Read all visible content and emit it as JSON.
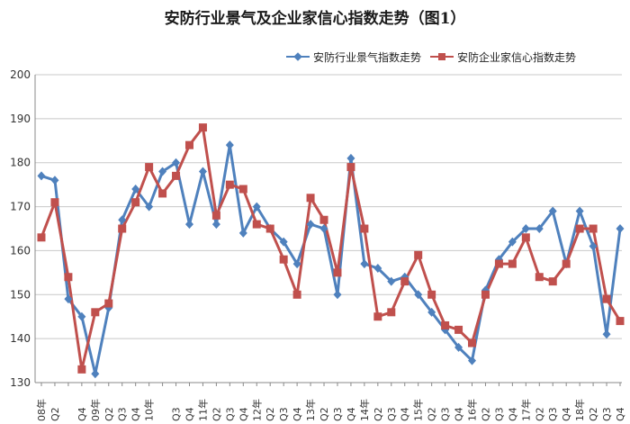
{
  "chart_data": {
    "type": "line",
    "title": "安防行业景气及企业家信心指数走势（图1）",
    "xlabel": "",
    "ylabel": "",
    "ylim": [
      130,
      200
    ],
    "yticks": [
      130,
      140,
      150,
      160,
      170,
      180,
      190,
      200
    ],
    "grid": true,
    "legend_position": "top-right",
    "categories": [
      "08年",
      "Q2",
      "Q3",
      "Q4",
      "09年",
      "Q2",
      "Q3",
      "Q4",
      "10年",
      "Q2",
      "Q3",
      "Q4",
      "11年",
      "Q2",
      "Q3",
      "Q4",
      "12年",
      "Q2",
      "Q3",
      "Q4",
      "13年",
      "Q2",
      "Q3",
      "Q4",
      "14年",
      "Q2",
      "Q3",
      "Q4",
      "15年",
      "Q2",
      "Q3",
      "Q4",
      "16年",
      "Q2",
      "Q3",
      "Q4",
      "17年",
      "Q2",
      "Q3",
      "Q4",
      "18年",
      "Q2",
      "Q3",
      "Q4"
    ],
    "tick_labels": [
      "08年",
      "Q2",
      "Q4",
      "09年",
      "Q2",
      "Q3",
      "Q4",
      "10年",
      "Q3",
      "Q4",
      "11年",
      "Q2",
      "Q3",
      "Q4",
      "12年",
      "Q2",
      "Q3",
      "Q4",
      "13年",
      "Q2",
      "Q3",
      "Q4",
      "14年",
      "Q2",
      "Q3",
      "Q4",
      "15年",
      "Q2",
      "Q3",
      "Q4",
      "16年",
      "Q2",
      "Q3",
      "Q4",
      "17年",
      "Q2",
      "Q3",
      "Q4",
      "18年",
      "Q2",
      "Q3",
      "Q4"
    ],
    "tick_index": [
      0,
      1,
      3,
      4,
      5,
      6,
      7,
      8,
      10,
      11,
      12,
      13,
      14,
      15,
      16,
      17,
      18,
      19,
      20,
      21,
      22,
      23,
      24,
      25,
      26,
      27,
      28,
      29,
      30,
      31,
      32,
      33,
      34,
      35,
      36,
      37,
      38,
      39,
      40,
      41,
      42,
      43
    ],
    "series": [
      {
        "name": "安防行业景气指数走势",
        "color": "#4F81BD",
        "marker": "diamond",
        "values": [
          177,
          176,
          149,
          145,
          132,
          147,
          167,
          174,
          170,
          178,
          180,
          166,
          178,
          166,
          184,
          164,
          170,
          165,
          162,
          157,
          166,
          165,
          150,
          181,
          157,
          156,
          153,
          154,
          150,
          146,
          142,
          138,
          135,
          151,
          158,
          162,
          165,
          165,
          169,
          157,
          169,
          161,
          141,
          165
        ]
      },
      {
        "name": "安防企业家信心指数走势",
        "color": "#C0504D",
        "marker": "square",
        "values": [
          163,
          171,
          154,
          133,
          146,
          148,
          165,
          171,
          179,
          173,
          177,
          184,
          188,
          168,
          175,
          174,
          166,
          165,
          158,
          150,
          172,
          167,
          155,
          179,
          165,
          145,
          146,
          153,
          159,
          150,
          143,
          142,
          139,
          150,
          157,
          157,
          163,
          154,
          153,
          157,
          165,
          165,
          149,
          144
        ]
      }
    ]
  }
}
